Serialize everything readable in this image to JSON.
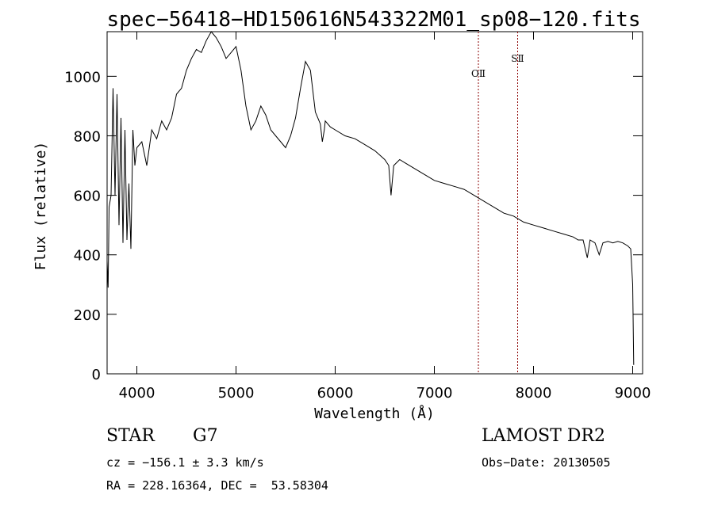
{
  "chart_data": {
    "type": "line",
    "title": "spec−56418−HD150616N543322M01_sp08−120.fits",
    "xlabel": "Wavelength (Å)",
    "ylabel": "Flux (relative)",
    "xlim": [
      3700,
      9100
    ],
    "ylim": [
      0,
      1150
    ],
    "xticks": [
      4000,
      5000,
      6000,
      7000,
      8000,
      9000
    ],
    "yticks": [
      0,
      200,
      400,
      600,
      800,
      1000
    ],
    "grid": false,
    "line_color": "#000000",
    "marker_color": "#8b0000",
    "series": [
      {
        "x": [
          3700,
          3710,
          3720,
          3740,
          3760,
          3780,
          3800,
          3820,
          3840,
          3860,
          3880,
          3900,
          3920,
          3940,
          3960,
          3980,
          4000,
          4050,
          4100,
          4150,
          4200,
          4250,
          4300,
          4350,
          4400,
          4450,
          4500,
          4550,
          4600,
          4650,
          4700,
          4750,
          4800,
          4850,
          4900,
          4950,
          5000,
          5050,
          5100,
          5150,
          5200,
          5250,
          5300,
          5350,
          5400,
          5450,
          5500,
          5550,
          5600,
          5650,
          5700,
          5750,
          5800,
          5850,
          5870,
          5890,
          5900,
          5950,
          6000,
          6100,
          6200,
          6300,
          6400,
          6500,
          6540,
          6563,
          6590,
          6650,
          6700,
          6800,
          6900,
          7000,
          7100,
          7200,
          7300,
          7400,
          7500,
          7600,
          7700,
          7800,
          7900,
          8000,
          8100,
          8200,
          8300,
          8400,
          8450,
          8500,
          8542,
          8570,
          8620,
          8662,
          8700,
          8750,
          8800,
          8850,
          8900,
          8950,
          8980,
          9000,
          9010
        ],
        "y": [
          380,
          290,
          560,
          600,
          960,
          600,
          940,
          500,
          860,
          440,
          820,
          450,
          640,
          420,
          820,
          700,
          760,
          780,
          700,
          820,
          790,
          850,
          820,
          860,
          940,
          960,
          1020,
          1060,
          1090,
          1080,
          1120,
          1150,
          1130,
          1100,
          1060,
          1080,
          1100,
          1020,
          900,
          820,
          850,
          900,
          870,
          820,
          800,
          780,
          760,
          800,
          860,
          960,
          1050,
          1020,
          880,
          840,
          780,
          820,
          850,
          830,
          820,
          800,
          790,
          770,
          750,
          720,
          700,
          600,
          700,
          720,
          710,
          690,
          670,
          650,
          640,
          630,
          620,
          600,
          580,
          560,
          540,
          530,
          510,
          500,
          490,
          480,
          470,
          460,
          450,
          450,
          390,
          450,
          440,
          400,
          440,
          445,
          440,
          445,
          440,
          430,
          420,
          300,
          30
        ]
      }
    ],
    "line_markers": [
      {
        "label": "OⅡ",
        "x": 7444
      },
      {
        "label": "SⅡ",
        "x": 7840
      }
    ]
  },
  "info": {
    "object_class": "STAR",
    "subclass": "G7",
    "survey": "LAMOST DR2",
    "redshift": "cz = −156.1 ± 3.3 km/s",
    "obs_date": "Obs−Date: 20130505",
    "coords": "RA = 228.16364, DEC =  53.58304"
  }
}
